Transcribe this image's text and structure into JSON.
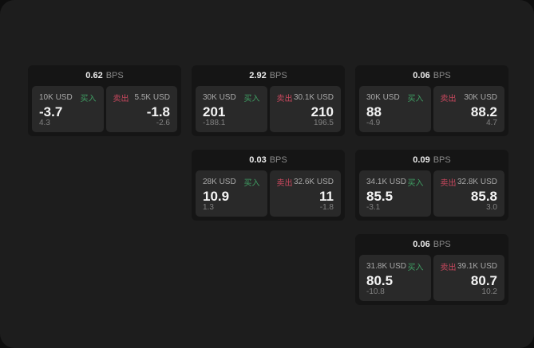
{
  "labels": {
    "bps": "BPS",
    "buy": "买入",
    "sell": "卖出"
  },
  "colors": {
    "buy_green": "#3f9e63",
    "sell_red": "#c9485e",
    "page_background": "#0e0e0e",
    "panel_background": "#1d1d1d",
    "card_background": "#151515",
    "tile_background": "#292929"
  },
  "cards": [
    {
      "bps": "0.62",
      "buy": {
        "amount": "10K USD",
        "price": "-3.7",
        "delta": "4.3"
      },
      "sell": {
        "amount": "5.5K USD",
        "price": "-1.8",
        "delta": "-2.6"
      }
    },
    {
      "bps": "2.92",
      "buy": {
        "amount": "30K USD",
        "price": "201",
        "delta": "-188.1"
      },
      "sell": {
        "amount": "30.1K USD",
        "price": "210",
        "delta": "196.5"
      }
    },
    {
      "bps": "0.06",
      "buy": {
        "amount": "30K USD",
        "price": "88",
        "delta": "-4.9"
      },
      "sell": {
        "amount": "30K USD",
        "price": "88.2",
        "delta": "4.7"
      }
    },
    {
      "bps": "0.03",
      "buy": {
        "amount": "28K USD",
        "price": "10.9",
        "delta": "1.3"
      },
      "sell": {
        "amount": "32.6K USD",
        "price": "11",
        "delta": "-1.8"
      }
    },
    {
      "bps": "0.09",
      "buy": {
        "amount": "34.1K USD",
        "price": "85.5",
        "delta": "-3.1"
      },
      "sell": {
        "amount": "32.8K USD",
        "price": "85.8",
        "delta": "3.0"
      }
    },
    {
      "bps": "0.06",
      "buy": {
        "amount": "31.8K USD",
        "price": "80.5",
        "delta": "-10.8"
      },
      "sell": {
        "amount": "39.1K USD",
        "price": "80.7",
        "delta": "10.2"
      }
    }
  ]
}
